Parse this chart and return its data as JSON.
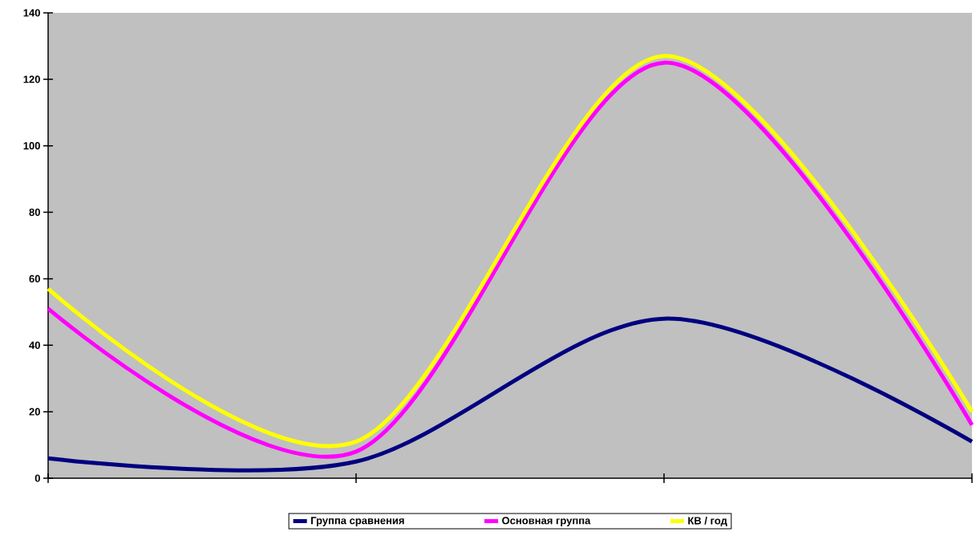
{
  "chart_data": {
    "type": "line",
    "categories": [
      null,
      null,
      null,
      null
    ],
    "series": [
      {
        "name": "Группа сравнения",
        "color": "#000080",
        "values": [
          6,
          5,
          48,
          11
        ]
      },
      {
        "name": "Основная группа",
        "color": "#ff00ff",
        "values": [
          51,
          8,
          125,
          16
        ]
      },
      {
        "name": "КВ / год",
        "color": "#ffff00",
        "values": [
          57,
          11,
          127,
          20
        ]
      }
    ],
    "ylim": [
      0,
      140
    ],
    "yticks": [
      0,
      20,
      40,
      60,
      80,
      100,
      120,
      140
    ],
    "grid": false,
    "legend": "bottom",
    "marker": "none",
    "line_style": "solid"
  }
}
